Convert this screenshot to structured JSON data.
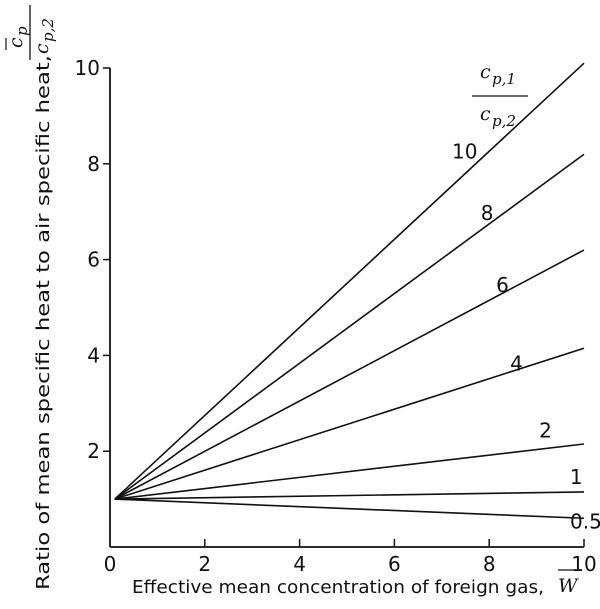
{
  "chart_data": {
    "type": "line",
    "xlabel": "Effective mean concentration of foreign gas,",
    "xlabel_symbol": "W",
    "ylabel": "Ratio of mean specific heat to air specific heat,",
    "ylabel_fraction": {
      "numerator": "c",
      "numerator_sub": "p",
      "denominator": "c",
      "denominator_sub": "p,2"
    },
    "legend_title": {
      "numerator": "c",
      "numerator_sub": "p,1",
      "denominator": "c",
      "denominator_sub": "p,2"
    },
    "xlim": [
      0,
      10
    ],
    "ylim": [
      0,
      10
    ],
    "x_ticks": [
      "0",
      "2",
      "4",
      "6",
      "8",
      "10"
    ],
    "y_ticks": [
      "2",
      "4",
      "6",
      "8",
      "10"
    ],
    "grid": false,
    "series": [
      {
        "name": "10",
        "x": [
          0.1,
          10
        ],
        "y": [
          1.0,
          10.1
        ]
      },
      {
        "name": "8",
        "x": [
          0.1,
          10
        ],
        "y": [
          1.0,
          8.2
        ]
      },
      {
        "name": "6",
        "x": [
          0.1,
          10
        ],
        "y": [
          1.0,
          6.2
        ]
      },
      {
        "name": "4",
        "x": [
          0.1,
          10
        ],
        "y": [
          1.0,
          4.15
        ]
      },
      {
        "name": "2",
        "x": [
          0.1,
          10
        ],
        "y": [
          1.0,
          2.15
        ]
      },
      {
        "name": "1",
        "x": [
          0.1,
          10
        ],
        "y": [
          1.0,
          1.15
        ]
      },
      {
        "name": "0.5",
        "x": [
          0.1,
          10
        ],
        "y": [
          1.0,
          0.6
        ]
      }
    ]
  }
}
